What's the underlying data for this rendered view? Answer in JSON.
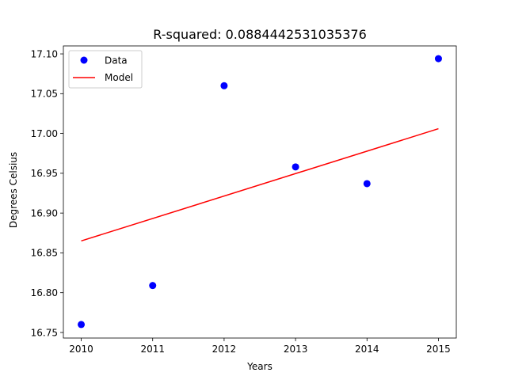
{
  "chart_data": {
    "type": "scatter",
    "title": "R-squared: 0.0884442531035376",
    "xlabel": "Years",
    "ylabel": "Degrees Celsius",
    "xlim": [
      2009.75,
      2015.25
    ],
    "ylim": [
      16.743,
      17.11
    ],
    "x_ticks": [
      2010,
      2011,
      2012,
      2013,
      2014,
      2015
    ],
    "x_tick_labels": [
      "2010",
      "2011",
      "2012",
      "2013",
      "2014",
      "2015"
    ],
    "y_ticks": [
      16.75,
      16.8,
      16.85,
      16.9,
      16.95,
      17.0,
      17.05,
      17.1
    ],
    "y_tick_labels": [
      "16.75",
      "16.80",
      "16.85",
      "16.90",
      "16.95",
      "17.00",
      "17.05",
      "17.10"
    ],
    "grid": false,
    "legend_position": "top-left",
    "series": [
      {
        "name": "Data",
        "type": "scatter",
        "color": "#0000ff",
        "x": [
          2010,
          2011,
          2012,
          2013,
          2014,
          2015
        ],
        "y": [
          16.76,
          16.809,
          17.06,
          16.958,
          16.937,
          17.094
        ]
      },
      {
        "name": "Model",
        "type": "line",
        "color": "#ff0000",
        "x": [
          2010,
          2015
        ],
        "y": [
          16.865,
          17.006
        ]
      }
    ]
  }
}
